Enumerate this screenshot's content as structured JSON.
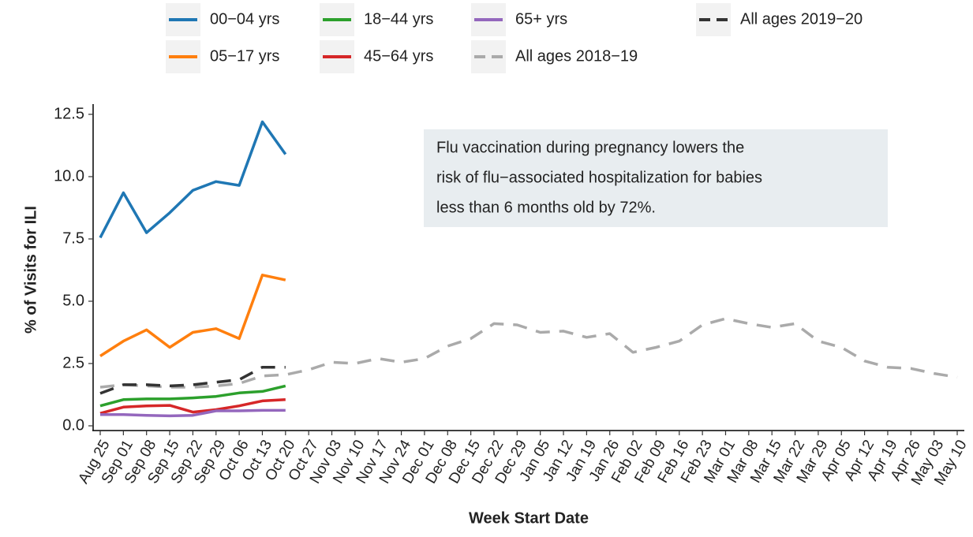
{
  "chart_data": {
    "type": "line",
    "xlabel": "Week Start Date",
    "ylabel": "% of Visits for ILI",
    "annotation": [
      "Flu vaccination during pregnancy lowers the",
      "risk of flu−associated hospitalization for babies",
      "less than 6 months old by 72%."
    ],
    "categories": [
      "Aug 25",
      "Sep 01",
      "Sep 08",
      "Sep 15",
      "Sep 22",
      "Sep 29",
      "Oct 06",
      "Oct 13",
      "Oct 20",
      "Oct 27",
      "Nov 03",
      "Nov 10",
      "Nov 17",
      "Nov 24",
      "Dec 01",
      "Dec 08",
      "Dec 15",
      "Dec 22",
      "Dec 29",
      "Jan 05",
      "Jan 12",
      "Jan 19",
      "Jan 26",
      "Feb 02",
      "Feb 09",
      "Feb 16",
      "Feb 23",
      "Mar 01",
      "Mar 08",
      "Mar 15",
      "Mar 22",
      "Mar 29",
      "Apr 05",
      "Apr 12",
      "Apr 19",
      "Apr 26",
      "May 03",
      "May 10"
    ],
    "series": [
      {
        "name": "00−04 yrs",
        "color": "#1f77b4",
        "linetype": "solid",
        "values": [
          7.55,
          9.35,
          7.75,
          8.55,
          9.45,
          9.8,
          9.65,
          12.2,
          10.9,
          null,
          null,
          null,
          null,
          null,
          null,
          null,
          null,
          null,
          null,
          null,
          null,
          null,
          null,
          null,
          null,
          null,
          null,
          null,
          null,
          null,
          null,
          null,
          null,
          null,
          null,
          null,
          null,
          null
        ]
      },
      {
        "name": "05−17 yrs",
        "color": "#ff7f0e",
        "linetype": "solid",
        "values": [
          2.8,
          3.4,
          3.85,
          3.15,
          3.75,
          3.9,
          3.5,
          6.05,
          5.85,
          null,
          null,
          null,
          null,
          null,
          null,
          null,
          null,
          null,
          null,
          null,
          null,
          null,
          null,
          null,
          null,
          null,
          null,
          null,
          null,
          null,
          null,
          null,
          null,
          null,
          null,
          null,
          null,
          null
        ]
      },
      {
        "name": "18−44 yrs",
        "color": "#2ca02c",
        "linetype": "solid",
        "values": [
          0.8,
          1.05,
          1.08,
          1.08,
          1.12,
          1.18,
          1.32,
          1.38,
          1.6,
          null,
          null,
          null,
          null,
          null,
          null,
          null,
          null,
          null,
          null,
          null,
          null,
          null,
          null,
          null,
          null,
          null,
          null,
          null,
          null,
          null,
          null,
          null,
          null,
          null,
          null,
          null,
          null,
          null
        ]
      },
      {
        "name": "45−64 yrs",
        "color": "#d62728",
        "linetype": "solid",
        "values": [
          0.5,
          0.75,
          0.8,
          0.82,
          0.55,
          0.65,
          0.8,
          1.0,
          1.05,
          null,
          null,
          null,
          null,
          null,
          null,
          null,
          null,
          null,
          null,
          null,
          null,
          null,
          null,
          null,
          null,
          null,
          null,
          null,
          null,
          null,
          null,
          null,
          null,
          null,
          null,
          null,
          null,
          null
        ]
      },
      {
        "name": "65+ yrs",
        "color": "#9467bd",
        "linetype": "solid",
        "values": [
          0.45,
          0.45,
          0.42,
          0.4,
          0.42,
          0.6,
          0.6,
          0.62,
          0.62,
          null,
          null,
          null,
          null,
          null,
          null,
          null,
          null,
          null,
          null,
          null,
          null,
          null,
          null,
          null,
          null,
          null,
          null,
          null,
          null,
          null,
          null,
          null,
          null,
          null,
          null,
          null,
          null,
          null
        ]
      },
      {
        "name": "All ages 2018−19",
        "color": "#aaaaaa",
        "linetype": "dashed",
        "values": [
          1.55,
          1.65,
          1.6,
          1.55,
          1.55,
          1.6,
          1.7,
          2.0,
          2.05,
          2.25,
          2.55,
          2.5,
          2.7,
          2.55,
          2.7,
          3.2,
          3.5,
          4.1,
          4.05,
          3.75,
          3.8,
          3.55,
          3.7,
          2.95,
          3.15,
          3.4,
          4.05,
          4.3,
          4.1,
          3.95,
          4.1,
          3.4,
          3.15,
          2.6,
          2.35,
          2.3,
          2.1,
          1.95
        ]
      },
      {
        "name": "All ages 2019−20",
        "color": "#333333",
        "linetype": "dashed",
        "values": [
          1.3,
          1.65,
          1.65,
          1.6,
          1.65,
          1.75,
          1.85,
          2.35,
          2.35,
          null,
          null,
          null,
          null,
          null,
          null,
          null,
          null,
          null,
          null,
          null,
          null,
          null,
          null,
          null,
          null,
          null,
          null,
          null,
          null,
          null,
          null,
          null,
          null,
          null,
          null,
          null,
          null,
          null
        ]
      }
    ],
    "ylim": [
      0,
      12.5
    ],
    "yticks": [
      {
        "value": 0,
        "label": "0.0"
      },
      2.5,
      {
        "value": 5,
        "label": "5.0"
      },
      7.5,
      {
        "value": 10,
        "label": "10.0"
      },
      12.5
    ],
    "legend": "top"
  }
}
